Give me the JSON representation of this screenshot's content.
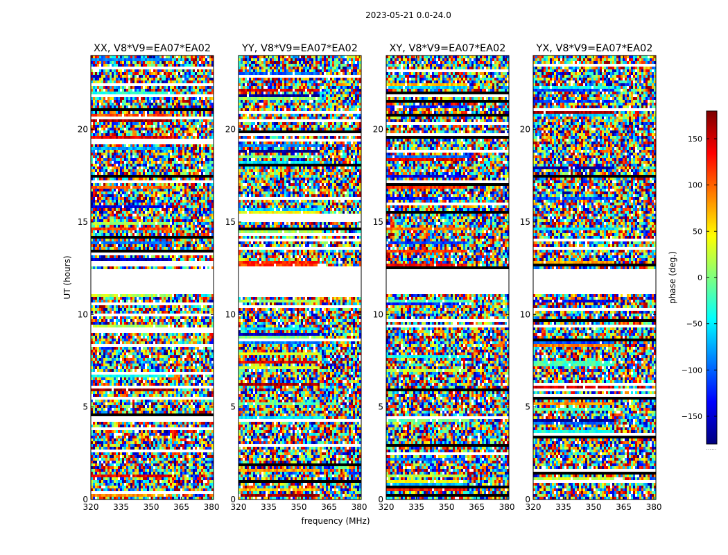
{
  "suptitle": "2023-05-21 0.0-24.0",
  "xlabel": "frequency (MHz)",
  "ylabel": "UT (hours)",
  "colorbar_label": "phase (deg.)",
  "colorbar_footer": "......",
  "chart_data": {
    "type": "heatmap",
    "colormap": "jet",
    "xlim": [
      320,
      381
    ],
    "ylim": [
      0,
      24
    ],
    "clim": [
      -180,
      180
    ],
    "x_ticks": [
      320,
      335,
      350,
      365,
      380
    ],
    "x_tick_labels": [
      "320",
      "335",
      "350",
      "365",
      "380"
    ],
    "y_ticks": [
      0,
      5,
      10,
      15,
      20
    ],
    "y_tick_labels": [
      "0",
      "5",
      "10",
      "15",
      "20"
    ],
    "colorbar_ticks": [
      150,
      100,
      50,
      0,
      -50,
      -100,
      -150
    ],
    "colorbar_tick_labels": [
      "150",
      "100",
      "50",
      "0",
      "−50",
      "−100",
      "−150"
    ],
    "flagged_gap_ut": [
      [
        11.1,
        12.5
      ]
    ],
    "panels": [
      {
        "title": "XX, V8*V9=EA07*EA02",
        "correlation": "XX"
      },
      {
        "title": "YY, V8*V9=EA07*EA02",
        "correlation": "YY"
      },
      {
        "title": "XY, V8*V9=EA07*EA02",
        "correlation": "XY"
      },
      {
        "title": "YX, V8*V9=EA07*EA02",
        "correlation": "YX"
      }
    ]
  }
}
